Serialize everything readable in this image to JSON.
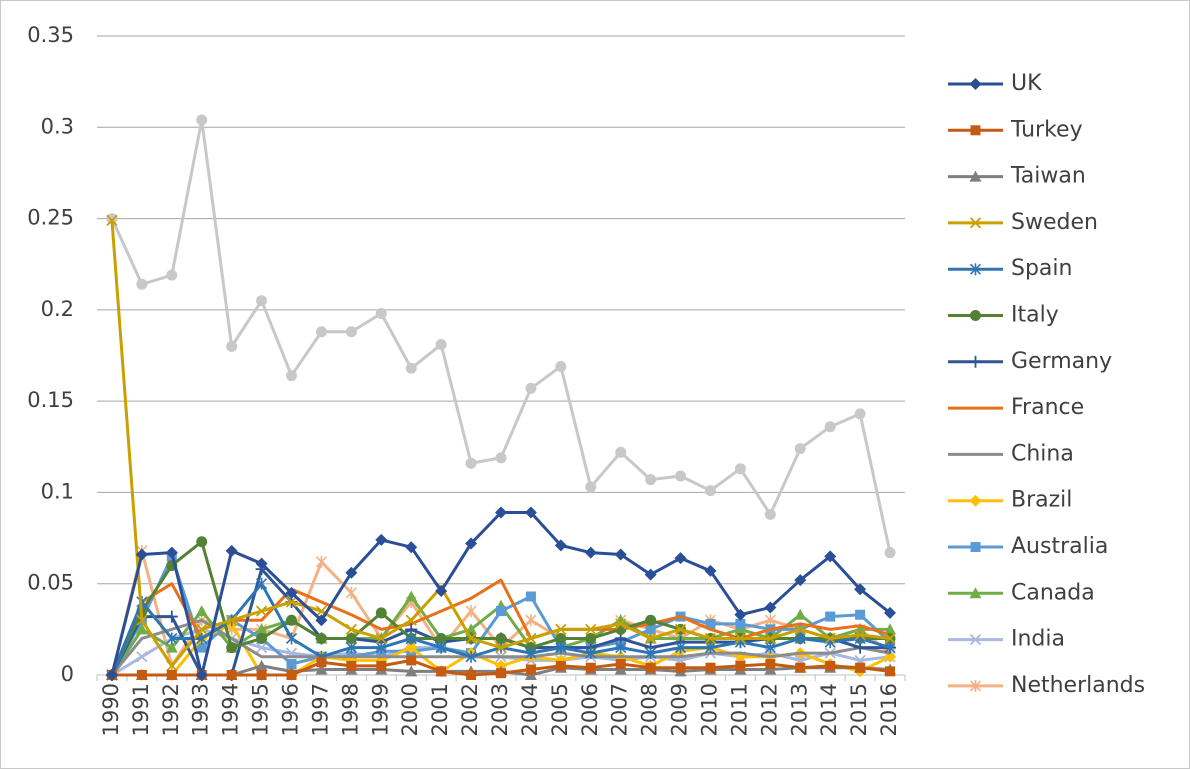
{
  "chart_data": {
    "type": "line",
    "categories": [
      "1990",
      "1991",
      "1992",
      "1993",
      "1994",
      "1995",
      "1996",
      "1997",
      "1998",
      "1999",
      "2000",
      "2001",
      "2002",
      "2003",
      "2004",
      "2005",
      "2006",
      "2007",
      "2008",
      "2009",
      "2010",
      "2011",
      "2012",
      "2013",
      "2014",
      "2015",
      "2016"
    ],
    "ylim": [
      0,
      0.35
    ],
    "yticks": [
      0,
      0.05,
      0.1,
      0.15,
      0.2,
      0.25,
      0.3,
      0.35
    ],
    "grid": true,
    "legend": "right",
    "series": [
      {
        "name": "UK",
        "color": "#2a4f97",
        "marker": "diamond",
        "values": [
          0,
          0.066,
          0.067,
          0,
          0.068,
          0.061,
          0.045,
          0.03,
          0.056,
          0.074,
          0.07,
          0.046,
          0.072,
          0.089,
          0.089,
          0.071,
          0.067,
          0.066,
          0.055,
          0.064,
          0.057,
          0.033,
          0.037,
          0.052,
          0.065,
          0.047,
          0.034
        ]
      },
      {
        "name": "Turkey",
        "color": "#c55a11",
        "marker": "square",
        "values": [
          0,
          0,
          0,
          0,
          0,
          0,
          0,
          0.007,
          0.005,
          0.005,
          0.008,
          0.002,
          0,
          0.001,
          0.003,
          0.005,
          0.004,
          0.006,
          0.004,
          0.004,
          0.004,
          0.005,
          0.006,
          0.004,
          0.005,
          0.004,
          0.002
        ]
      },
      {
        "name": "Taiwan",
        "color": "#7f7f7f",
        "marker": "triangle",
        "values": [
          0,
          0,
          0,
          0,
          0,
          0.005,
          0.002,
          0.003,
          0.003,
          0.003,
          0.002,
          0.002,
          0.002,
          0.002,
          0,
          0.004,
          0.003,
          0.003,
          0.003,
          0.002,
          0.003,
          0.003,
          0.003,
          0.004,
          0.004,
          0.004,
          0.003
        ]
      },
      {
        "name": "Sweden",
        "color": "#c9a000",
        "marker": "x",
        "values": [
          0.249,
          0.03,
          0.005,
          0.025,
          0.03,
          0.035,
          0.04,
          0.035,
          0.025,
          0.02,
          0.03,
          0.048,
          0.02,
          0.015,
          0.02,
          0.025,
          0.025,
          0.028,
          0.02,
          0.025,
          0.02,
          0.02,
          0.02,
          0.025,
          0.02,
          0.022,
          0.02
        ]
      },
      {
        "name": "Spain",
        "color": "#2e75b6",
        "marker": "asterisk",
        "values": [
          0,
          0.04,
          0.02,
          0.02,
          0.03,
          0.05,
          0.02,
          0.01,
          0.015,
          0.015,
          0.02,
          0.015,
          0.01,
          0.015,
          0.012,
          0.015,
          0.012,
          0.015,
          0.012,
          0.015,
          0.015,
          0.018,
          0.015,
          0.02,
          0.018,
          0.02,
          0.015
        ]
      },
      {
        "name": "Italy",
        "color": "#548235",
        "marker": "circle",
        "values": [
          0,
          0.035,
          0.06,
          0.073,
          0.015,
          0.02,
          0.03,
          0.02,
          0.02,
          0.034,
          0.02,
          0.02,
          0.02,
          0.02,
          0.015,
          0.02,
          0.02,
          0.025,
          0.03,
          0.025,
          0.02,
          0.02,
          0.02,
          0.02,
          0.02,
          0.02,
          0.02
        ]
      },
      {
        "name": "Germany",
        "color": "#2f5597",
        "marker": "plus",
        "values": [
          0,
          0.032,
          0.032,
          0,
          0,
          0.058,
          0.04,
          0.02,
          0.02,
          0.018,
          0.025,
          0.018,
          0.02,
          0.02,
          0.015,
          0.015,
          0.015,
          0.02,
          0.015,
          0.018,
          0.018,
          0.018,
          0.02,
          0.02,
          0.02,
          0.015,
          0.015
        ]
      },
      {
        "name": "France",
        "color": "#e8701a",
        "marker": "none",
        "values": [
          0,
          0.04,
          0.05,
          0.02,
          0.03,
          0.03,
          0.047,
          0.04,
          0.033,
          0.025,
          0.028,
          0.035,
          0.042,
          0.052,
          0.02,
          0.025,
          0.025,
          0.025,
          0.028,
          0.032,
          0.025,
          0.02,
          0.025,
          0.028,
          0.025,
          0.027,
          0.022
        ]
      },
      {
        "name": "China",
        "color": "#8c8c8c",
        "marker": "none",
        "values": [
          0,
          0.02,
          0.025,
          0.03,
          0.02,
          0.01,
          0.01,
          0.01,
          0.01,
          0.01,
          0.01,
          0.01,
          0.01,
          0.01,
          0.01,
          0.012,
          0.01,
          0.01,
          0.01,
          0.01,
          0.012,
          0.012,
          0.01,
          0.012,
          0.012,
          0.015,
          0.012
        ]
      },
      {
        "name": "Brazil",
        "color": "#ffc000",
        "marker": "diamond",
        "values": [
          0,
          0,
          0,
          0.02,
          0.028,
          0,
          0,
          0.01,
          0.008,
          0.008,
          0.015,
          0.002,
          0.012,
          0.005,
          0.01,
          0.008,
          0.012,
          0.01,
          0.005,
          0.013,
          0.015,
          0.01,
          0.01,
          0.012,
          0.006,
          0.002,
          0.01
        ]
      },
      {
        "name": "Australia",
        "color": "#5b9bd5",
        "marker": "square",
        "values": [
          0,
          0.03,
          0.065,
          0.015,
          0.03,
          0.02,
          0.006,
          0.01,
          0.01,
          0.013,
          0.013,
          0.015,
          0.012,
          0.035,
          0.043,
          0.015,
          0.015,
          0.018,
          0.025,
          0.032,
          0.028,
          0.028,
          0.025,
          0.025,
          0.032,
          0.033,
          0.018
        ]
      },
      {
        "name": "Canada",
        "color": "#70ad47",
        "marker": "triangle",
        "values": [
          0,
          0.025,
          0.015,
          0.035,
          0.015,
          0.025,
          0.03,
          0.02,
          0.02,
          0.02,
          0.043,
          0.02,
          0.025,
          0.038,
          0.015,
          0.015,
          0.02,
          0.03,
          0.02,
          0.02,
          0.02,
          0.025,
          0.02,
          0.033,
          0.02,
          0.025,
          0.025
        ]
      },
      {
        "name": "India",
        "color": "#a9b8e0",
        "marker": "x",
        "values": [
          0,
          0.01,
          0.02,
          0.025,
          0.02,
          0.015,
          0.012,
          0.01,
          0.012,
          0.01,
          0.015,
          0.015,
          0.01,
          0.01,
          0.008,
          0.008,
          0.01,
          0.008,
          0.01,
          0.008,
          0.012,
          0.01,
          0.012,
          0.008,
          0.012,
          0.008,
          0.01
        ]
      },
      {
        "name": "Netherlands",
        "color": "#f4b183",
        "marker": "asterisk",
        "values": [
          0,
          0.068,
          0.005,
          0.03,
          0.025,
          0.025,
          0.02,
          0.062,
          0.045,
          0.02,
          0.04,
          0.015,
          0.035,
          0.015,
          0.03,
          0.02,
          0.02,
          0.03,
          0.025,
          0.02,
          0.03,
          0.025,
          0.03,
          0.025,
          0.02,
          0.025,
          0.012
        ]
      },
      {
        "color": "#c8c8c8",
        "marker": "circle",
        "values": [
          0.25,
          0.214,
          0.219,
          0.304,
          0.18,
          0.205,
          0.164,
          0.188,
          0.188,
          0.198,
          0.168,
          0.181,
          0.116,
          0.119,
          0.157,
          0.169,
          0.103,
          0.122,
          0.107,
          0.109,
          0.101,
          0.113,
          0.088,
          0.124,
          0.136,
          0.143,
          0.067
        ]
      }
    ]
  }
}
